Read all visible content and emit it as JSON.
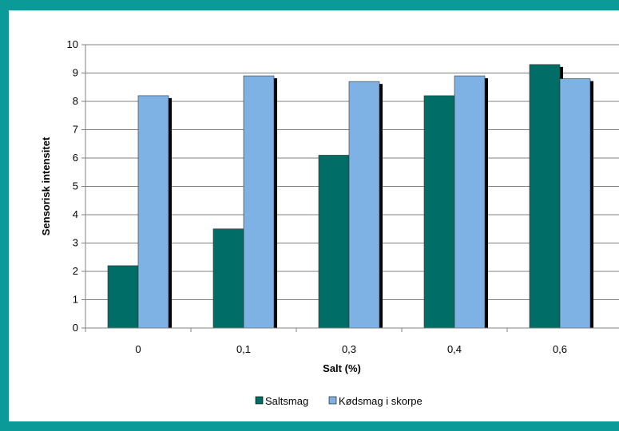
{
  "colors": {
    "background": "#0b9a97",
    "saltsmag": "#006e66",
    "kodsmag": "#7fb2e4",
    "bar_shadow": "#000000",
    "axis": "#808080"
  },
  "chart_data": {
    "type": "bar",
    "title": "",
    "xlabel": "Salt (%)",
    "ylabel": "Sensorisk intensitet",
    "categories": [
      "0",
      "0,1",
      "0,3",
      "0,4",
      "0,6"
    ],
    "series": [
      {
        "name": "Saltsmag",
        "values": [
          2.2,
          3.5,
          6.1,
          8.2,
          9.3
        ]
      },
      {
        "name": "Kødsmag i skorpe",
        "values": [
          8.2,
          8.9,
          8.7,
          8.9,
          8.8
        ]
      }
    ],
    "ylim": [
      0,
      10
    ],
    "yticks": [
      "0",
      "1",
      "2",
      "3",
      "4",
      "5",
      "6",
      "7",
      "8",
      "9",
      "10"
    ],
    "grid": true,
    "legend": "bottom"
  }
}
